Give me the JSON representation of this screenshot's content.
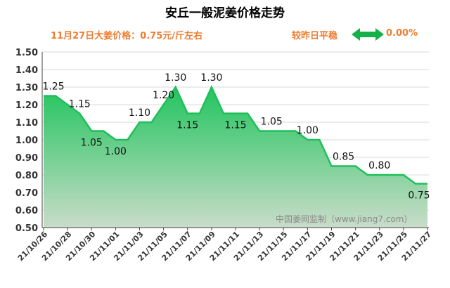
{
  "header": {
    "title": "安丘一般泥姜价格走势",
    "subtitle": "11月27日大姜价格：0.75元/斤左右",
    "status": "较昨日平稳",
    "change": "0.00%"
  },
  "watermark": "中国姜网监制（www.jiang7.com）",
  "colors": {
    "line": "#1fbf5b",
    "fill_top": "#22c55e",
    "fill_bottom": "#c9dcc9",
    "accent": "#ed7d31",
    "arrow": "#14b04a"
  },
  "chart_data": {
    "type": "area",
    "title": "安丘一般泥姜价格走势",
    "x": [
      "21/10/26",
      "21/10/27",
      "21/10/28",
      "21/10/29",
      "21/10/30",
      "21/10/31",
      "21/11/01",
      "21/11/02",
      "21/11/03",
      "21/11/04",
      "21/11/05",
      "21/11/06",
      "21/11/07",
      "21/11/08",
      "21/11/09",
      "21/11/10",
      "21/11/11",
      "21/11/12",
      "21/11/13",
      "21/11/14",
      "21/11/15",
      "21/11/16",
      "21/11/17",
      "21/11/18",
      "21/11/19",
      "21/11/20",
      "21/11/21",
      "21/11/22",
      "21/11/23",
      "21/11/24",
      "21/11/25",
      "21/11/26",
      "21/11/27"
    ],
    "xtick_labels": [
      "21/10/26",
      "21/10/28",
      "21/10/30",
      "21/11/01",
      "21/11/03",
      "21/11/05",
      "21/11/07",
      "21/11/09",
      "21/11/11",
      "21/11/13",
      "21/11/15",
      "21/11/17",
      "21/11/19",
      "21/11/21",
      "21/11/23",
      "21/11/25",
      "21/11/27"
    ],
    "values": [
      1.25,
      1.25,
      1.2,
      1.15,
      1.05,
      1.05,
      1.0,
      1.0,
      1.1,
      1.1,
      1.2,
      1.3,
      1.15,
      1.15,
      1.3,
      1.15,
      1.15,
      1.15,
      1.05,
      1.05,
      1.05,
      1.05,
      1.0,
      1.0,
      0.85,
      0.85,
      0.85,
      0.8,
      0.8,
      0.8,
      0.8,
      0.75,
      0.75
    ],
    "data_labels": [
      {
        "index": 0,
        "text": "1.25"
      },
      {
        "index": 3,
        "text": "1.15"
      },
      {
        "index": 4,
        "text": "1.05"
      },
      {
        "index": 6,
        "text": "1.00"
      },
      {
        "index": 8,
        "text": "1.10"
      },
      {
        "index": 10,
        "text": "1.20"
      },
      {
        "index": 11,
        "text": "1.30"
      },
      {
        "index": 12,
        "text": "1.15"
      },
      {
        "index": 14,
        "text": "1.30"
      },
      {
        "index": 16,
        "text": "1.15"
      },
      {
        "index": 19,
        "text": "1.05"
      },
      {
        "index": 22,
        "text": "1.00"
      },
      {
        "index": 25,
        "text": "0.85"
      },
      {
        "index": 28,
        "text": "0.80"
      },
      {
        "index": 32,
        "text": "0.75"
      }
    ],
    "yticks": [
      "0.50",
      "0.60",
      "0.70",
      "0.80",
      "0.90",
      "1.00",
      "1.10",
      "1.20",
      "1.30",
      "1.40",
      "1.50"
    ],
    "ylim": [
      0.5,
      1.5
    ],
    "grid": true
  }
}
